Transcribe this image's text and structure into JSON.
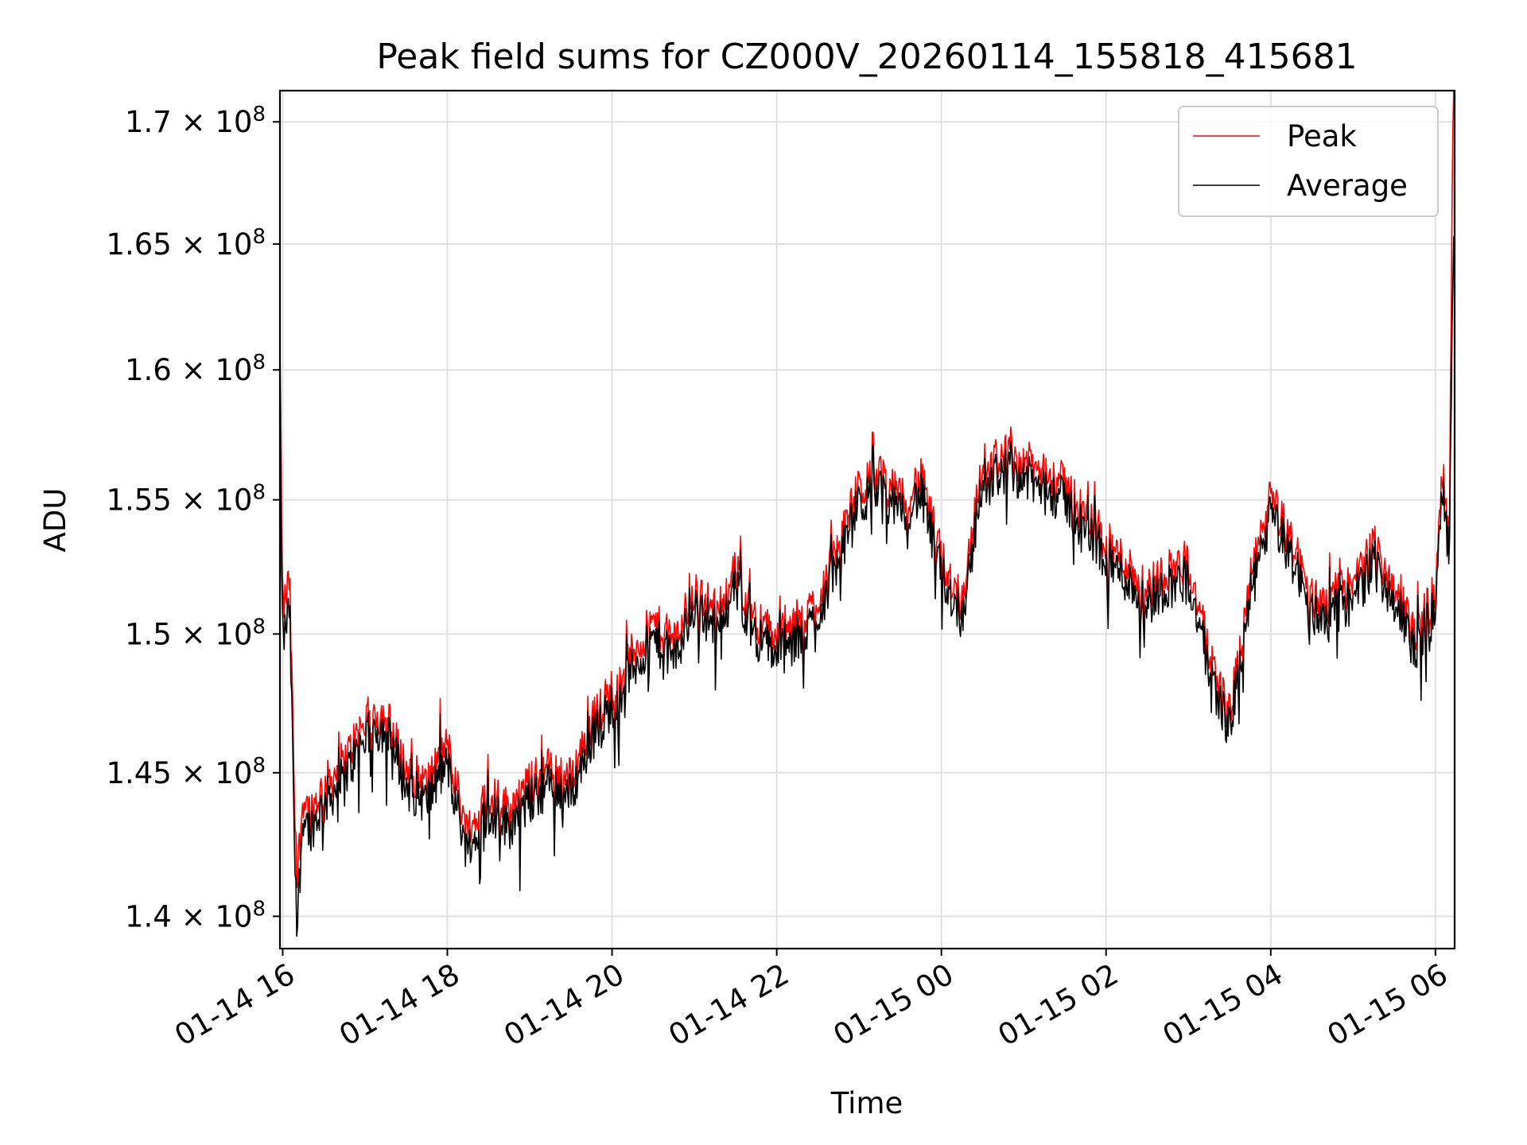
{
  "chart_data": {
    "type": "line",
    "title": "Peak field sums for CZ000V_20260114_155818_415681",
    "xlabel": "Time",
    "ylabel": "ADU",
    "x_ticks": [
      "01-14 16",
      "01-14 18",
      "01-14 20",
      "01-14 22",
      "01-15 00",
      "01-15 02",
      "01-15 04",
      "01-15 06"
    ],
    "y_ticks": [
      {
        "mant": "1.4",
        "exp": "8"
      },
      {
        "mant": "1.45",
        "exp": "8"
      },
      {
        "mant": "1.5",
        "exp": "8"
      },
      {
        "mant": "1.55",
        "exp": "8"
      },
      {
        "mant": "1.6",
        "exp": "8"
      },
      {
        "mant": "1.65",
        "exp": "8"
      },
      {
        "mant": "1.7",
        "exp": "8"
      }
    ],
    "y_tick_values": [
      140000000,
      145000000,
      150000000,
      155000000,
      160000000,
      165000000,
      170000000
    ],
    "xlim": [
      "2026-01-14 15:58",
      "2026-01-15 06:14"
    ],
    "ylim": [
      138900000,
      171300000
    ],
    "y_scale": "log",
    "grid": true,
    "legend_position": "top-right",
    "x": [
      "2026-01-14 15:58",
      "2026-01-14 16:00",
      "2026-01-14 16:05",
      "2026-01-14 16:10",
      "2026-01-14 16:15",
      "2026-01-14 16:20",
      "2026-01-14 16:30",
      "2026-01-14 16:45",
      "2026-01-14 17:00",
      "2026-01-14 17:15",
      "2026-01-14 17:30",
      "2026-01-14 17:45",
      "2026-01-14 18:00",
      "2026-01-14 18:15",
      "2026-01-14 18:30",
      "2026-01-14 18:45",
      "2026-01-14 19:00",
      "2026-01-14 19:15",
      "2026-01-14 19:30",
      "2026-01-14 19:45",
      "2026-01-14 20:00",
      "2026-01-14 20:15",
      "2026-01-14 20:30",
      "2026-01-14 20:45",
      "2026-01-14 21:00",
      "2026-01-14 21:15",
      "2026-01-14 21:30",
      "2026-01-14 21:45",
      "2026-01-14 22:00",
      "2026-01-14 22:15",
      "2026-01-14 22:30",
      "2026-01-14 22:45",
      "2026-01-14 23:00",
      "2026-01-14 23:15",
      "2026-01-14 23:30",
      "2026-01-14 23:45",
      "2026-01-15 00:00",
      "2026-01-15 00:15",
      "2026-01-15 00:30",
      "2026-01-15 00:45",
      "2026-01-15 01:00",
      "2026-01-15 01:15",
      "2026-01-15 01:30",
      "2026-01-15 01:45",
      "2026-01-15 02:00",
      "2026-01-15 02:15",
      "2026-01-15 02:30",
      "2026-01-15 02:45",
      "2026-01-15 03:00",
      "2026-01-15 03:15",
      "2026-01-15 03:30",
      "2026-01-15 03:45",
      "2026-01-15 04:00",
      "2026-01-15 04:15",
      "2026-01-15 04:30",
      "2026-01-15 04:45",
      "2026-01-15 05:00",
      "2026-01-15 05:15",
      "2026-01-15 05:30",
      "2026-01-15 05:45",
      "2026-01-15 06:00",
      "2026-01-15 06:05",
      "2026-01-15 06:10",
      "2026-01-15 06:13"
    ],
    "series": [
      {
        "name": "Peak",
        "color": "#ff0000",
        "values": [
          160500000,
          150800000,
          152000000,
          141000000,
          144200000,
          143600000,
          144500000,
          145400000,
          146900000,
          147100000,
          145100000,
          144600000,
          146000000,
          142800000,
          144300000,
          143700000,
          144600000,
          145200000,
          144800000,
          146800000,
          148000000,
          149300000,
          150400000,
          149700000,
          151600000,
          150900000,
          152300000,
          150500000,
          149900000,
          150200000,
          151300000,
          153300000,
          155400000,
          156000000,
          155000000,
          155800000,
          152800000,
          151200000,
          156300000,
          156700000,
          156500000,
          155900000,
          155600000,
          154400000,
          153400000,
          152600000,
          151700000,
          152400000,
          152600000,
          149300000,
          147000000,
          151900000,
          155100000,
          153400000,
          151300000,
          151400000,
          151800000,
          153200000,
          151800000,
          150000000,
          151500000,
          156600000,
          153000000,
          171300000
        ]
      },
      {
        "name": "Average",
        "color": "#000000",
        "values": [
          158000000,
          149600000,
          151000000,
          139300000,
          143600000,
          143000000,
          143900000,
          144800000,
          146300000,
          146600000,
          144500000,
          144000000,
          145300000,
          142100000,
          143700000,
          143100000,
          144000000,
          144600000,
          144200000,
          146200000,
          147400000,
          148700000,
          149800000,
          149100000,
          151000000,
          150300000,
          151700000,
          149900000,
          149300000,
          149600000,
          150700000,
          152700000,
          154800000,
          155400000,
          154400000,
          155200000,
          152200000,
          150600000,
          155700000,
          156100000,
          155900000,
          155300000,
          155000000,
          153800000,
          152800000,
          152000000,
          151100000,
          151800000,
          152000000,
          148700000,
          146500000,
          151300000,
          154500000,
          152800000,
          150700000,
          150800000,
          151200000,
          152600000,
          151200000,
          149400000,
          150900000,
          156000000,
          152600000,
          164500000
        ]
      }
    ]
  }
}
